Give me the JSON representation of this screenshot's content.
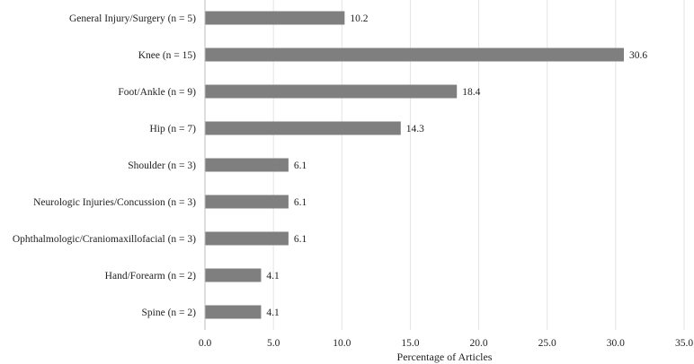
{
  "chart_data": {
    "type": "bar",
    "orientation": "horizontal",
    "categories": [
      "General Injury/Surgery (n = 5)",
      "Knee (n = 15)",
      "Foot/Ankle (n = 9)",
      "Hip (n = 7)",
      "Shoulder (n =  3)",
      "Neurologic Injuries/Concussion (n = 3)",
      "Ophthalmologic/Craniomaxillofacial (n = 3)",
      "Hand/Forearm (n = 2)",
      "Spine (n = 2)"
    ],
    "values": [
      10.2,
      30.6,
      18.4,
      14.3,
      6.1,
      6.1,
      6.1,
      4.1,
      4.1
    ],
    "data_labels": [
      "10.2",
      "30.6",
      "18.4",
      "14.3",
      "6.1",
      "6.1",
      "6.1",
      "4.1",
      "4.1"
    ],
    "xlabel": "Percentage of Articles",
    "ylabel": "",
    "xlim": [
      0,
      35
    ],
    "x_ticks": [
      "0.0",
      "5.0",
      "10.0",
      "15.0",
      "20.0",
      "25.0",
      "30.0",
      "35.0"
    ],
    "grid": "vertical-on",
    "legend": "none",
    "bar_color": "#7f7f7f"
  }
}
